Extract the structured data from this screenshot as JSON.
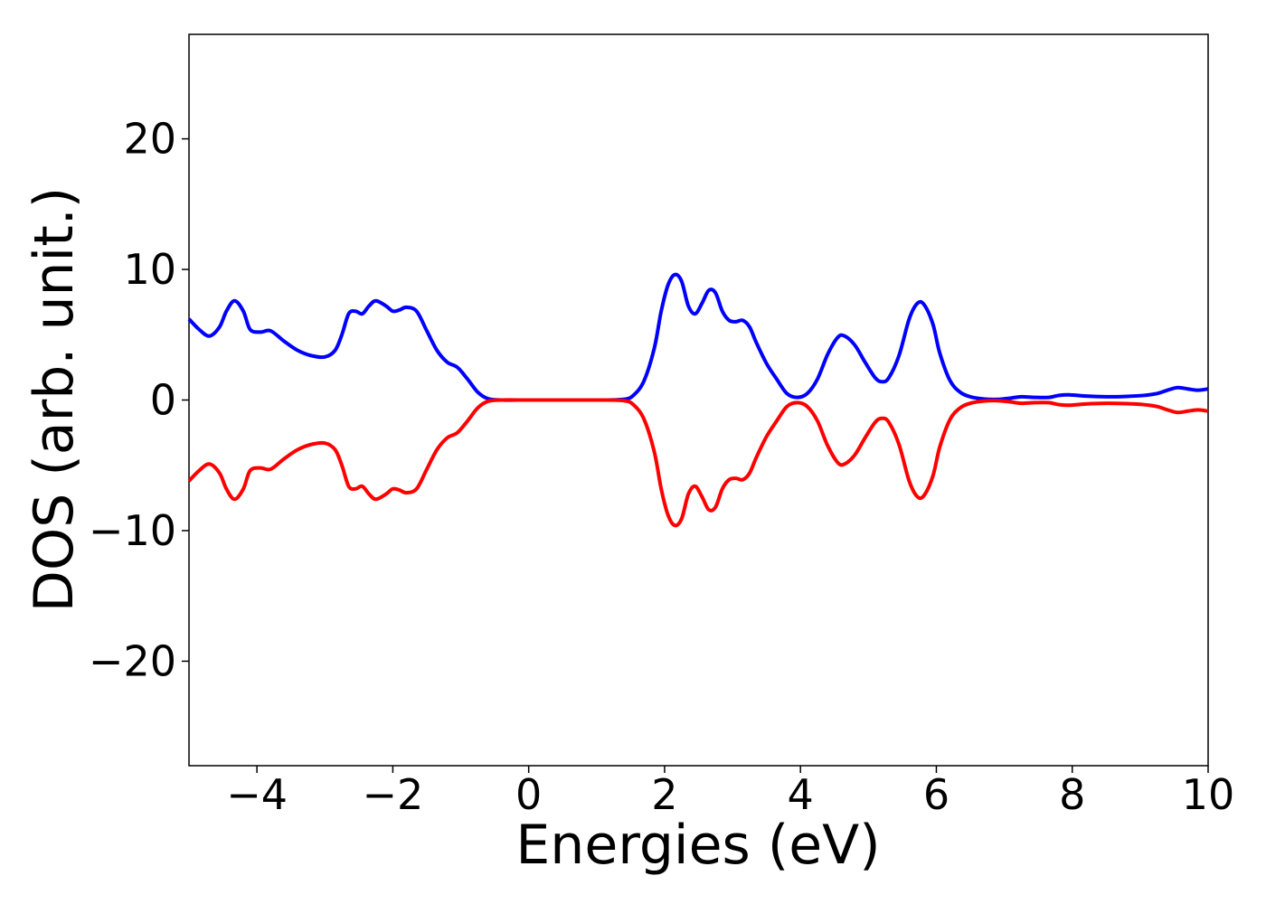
{
  "chart_data": {
    "type": "line",
    "title": "",
    "xlabel": "Energies (eV)",
    "ylabel": "DOS (arb. unit.)",
    "xlim": [
      -5,
      10
    ],
    "ylim": [
      -28,
      28
    ],
    "xticks": [
      -4,
      -2,
      0,
      2,
      4,
      6,
      8,
      10
    ],
    "xtick_labels": [
      "−4",
      "−2",
      "0",
      "2",
      "4",
      "6",
      "8",
      "10"
    ],
    "yticks": [
      -20,
      -10,
      0,
      10,
      20
    ],
    "ytick_labels": [
      "−20",
      "−10",
      "0",
      "10",
      "20"
    ],
    "grid": false,
    "legend": "none",
    "series": [
      {
        "color": "#0000ff",
        "points": [
          [
            -5.0,
            6.2
          ],
          [
            -4.85,
            5.4
          ],
          [
            -4.7,
            4.9
          ],
          [
            -4.55,
            5.6
          ],
          [
            -4.45,
            6.8
          ],
          [
            -4.33,
            7.6
          ],
          [
            -4.2,
            6.8
          ],
          [
            -4.1,
            5.4
          ],
          [
            -3.95,
            5.2
          ],
          [
            -3.8,
            5.3
          ],
          [
            -3.6,
            4.5
          ],
          [
            -3.4,
            3.8
          ],
          [
            -3.2,
            3.4
          ],
          [
            -3.0,
            3.3
          ],
          [
            -2.85,
            3.8
          ],
          [
            -2.75,
            5.0
          ],
          [
            -2.65,
            6.6
          ],
          [
            -2.55,
            6.8
          ],
          [
            -2.45,
            6.6
          ],
          [
            -2.35,
            7.2
          ],
          [
            -2.25,
            7.6
          ],
          [
            -2.1,
            7.2
          ],
          [
            -2.0,
            6.8
          ],
          [
            -1.9,
            6.9
          ],
          [
            -1.8,
            7.1
          ],
          [
            -1.65,
            6.8
          ],
          [
            -1.5,
            5.3
          ],
          [
            -1.35,
            3.8
          ],
          [
            -1.2,
            2.9
          ],
          [
            -1.05,
            2.5
          ],
          [
            -0.9,
            1.6
          ],
          [
            -0.75,
            0.6
          ],
          [
            -0.6,
            0.1
          ],
          [
            -0.4,
            0.0
          ],
          [
            0.0,
            0.0
          ],
          [
            0.5,
            0.0
          ],
          [
            1.0,
            0.0
          ],
          [
            1.4,
            0.05
          ],
          [
            1.55,
            0.4
          ],
          [
            1.7,
            1.5
          ],
          [
            1.85,
            4.0
          ],
          [
            1.95,
            6.8
          ],
          [
            2.05,
            8.8
          ],
          [
            2.15,
            9.6
          ],
          [
            2.25,
            9.1
          ],
          [
            2.35,
            7.2
          ],
          [
            2.45,
            6.6
          ],
          [
            2.55,
            7.4
          ],
          [
            2.65,
            8.4
          ],
          [
            2.75,
            8.2
          ],
          [
            2.85,
            6.8
          ],
          [
            2.95,
            6.1
          ],
          [
            3.05,
            6.0
          ],
          [
            3.15,
            6.1
          ],
          [
            3.25,
            5.6
          ],
          [
            3.35,
            4.4
          ],
          [
            3.5,
            2.8
          ],
          [
            3.65,
            1.6
          ],
          [
            3.8,
            0.5
          ],
          [
            3.95,
            0.2
          ],
          [
            4.1,
            0.5
          ],
          [
            4.25,
            1.6
          ],
          [
            4.4,
            3.5
          ],
          [
            4.55,
            4.8
          ],
          [
            4.65,
            4.9
          ],
          [
            4.8,
            4.2
          ],
          [
            4.95,
            2.9
          ],
          [
            5.1,
            1.7
          ],
          [
            5.2,
            1.4
          ],
          [
            5.3,
            1.7
          ],
          [
            5.45,
            3.4
          ],
          [
            5.6,
            6.2
          ],
          [
            5.72,
            7.4
          ],
          [
            5.82,
            7.3
          ],
          [
            5.95,
            5.8
          ],
          [
            6.05,
            3.6
          ],
          [
            6.2,
            1.5
          ],
          [
            6.35,
            0.6
          ],
          [
            6.5,
            0.25
          ],
          [
            6.7,
            0.08
          ],
          [
            6.9,
            0.05
          ],
          [
            7.1,
            0.15
          ],
          [
            7.25,
            0.25
          ],
          [
            7.45,
            0.2
          ],
          [
            7.65,
            0.2
          ],
          [
            7.8,
            0.35
          ],
          [
            7.95,
            0.4
          ],
          [
            8.2,
            0.3
          ],
          [
            8.5,
            0.25
          ],
          [
            8.8,
            0.28
          ],
          [
            9.05,
            0.35
          ],
          [
            9.25,
            0.5
          ],
          [
            9.4,
            0.75
          ],
          [
            9.55,
            0.95
          ],
          [
            9.7,
            0.85
          ],
          [
            9.85,
            0.75
          ],
          [
            10.0,
            0.85
          ]
        ]
      },
      {
        "color": "#ff0000",
        "points": [
          [
            -5.0,
            -6.2
          ],
          [
            -4.85,
            -5.4
          ],
          [
            -4.7,
            -4.9
          ],
          [
            -4.55,
            -5.6
          ],
          [
            -4.45,
            -6.8
          ],
          [
            -4.33,
            -7.6
          ],
          [
            -4.2,
            -6.8
          ],
          [
            -4.1,
            -5.4
          ],
          [
            -3.95,
            -5.2
          ],
          [
            -3.8,
            -5.3
          ],
          [
            -3.6,
            -4.5
          ],
          [
            -3.4,
            -3.8
          ],
          [
            -3.2,
            -3.4
          ],
          [
            -3.0,
            -3.3
          ],
          [
            -2.85,
            -3.8
          ],
          [
            -2.75,
            -5.0
          ],
          [
            -2.65,
            -6.6
          ],
          [
            -2.55,
            -6.8
          ],
          [
            -2.45,
            -6.6
          ],
          [
            -2.35,
            -7.2
          ],
          [
            -2.25,
            -7.6
          ],
          [
            -2.1,
            -7.2
          ],
          [
            -2.0,
            -6.8
          ],
          [
            -1.9,
            -6.9
          ],
          [
            -1.8,
            -7.1
          ],
          [
            -1.65,
            -6.8
          ],
          [
            -1.5,
            -5.3
          ],
          [
            -1.35,
            -3.8
          ],
          [
            -1.2,
            -2.9
          ],
          [
            -1.05,
            -2.5
          ],
          [
            -0.9,
            -1.6
          ],
          [
            -0.75,
            -0.6
          ],
          [
            -0.6,
            -0.1
          ],
          [
            -0.4,
            0.0
          ],
          [
            0.0,
            0.0
          ],
          [
            0.5,
            0.0
          ],
          [
            1.0,
            0.0
          ],
          [
            1.4,
            -0.05
          ],
          [
            1.55,
            -0.4
          ],
          [
            1.7,
            -1.5
          ],
          [
            1.85,
            -4.0
          ],
          [
            1.95,
            -6.8
          ],
          [
            2.05,
            -8.8
          ],
          [
            2.15,
            -9.6
          ],
          [
            2.25,
            -9.1
          ],
          [
            2.35,
            -7.2
          ],
          [
            2.45,
            -6.6
          ],
          [
            2.55,
            -7.4
          ],
          [
            2.65,
            -8.4
          ],
          [
            2.75,
            -8.2
          ],
          [
            2.85,
            -6.8
          ],
          [
            2.95,
            -6.1
          ],
          [
            3.05,
            -6.0
          ],
          [
            3.15,
            -6.1
          ],
          [
            3.25,
            -5.6
          ],
          [
            3.35,
            -4.4
          ],
          [
            3.5,
            -2.8
          ],
          [
            3.65,
            -1.6
          ],
          [
            3.8,
            -0.5
          ],
          [
            3.95,
            -0.2
          ],
          [
            4.1,
            -0.5
          ],
          [
            4.25,
            -1.6
          ],
          [
            4.4,
            -3.5
          ],
          [
            4.55,
            -4.8
          ],
          [
            4.65,
            -4.9
          ],
          [
            4.8,
            -4.2
          ],
          [
            4.95,
            -2.9
          ],
          [
            5.1,
            -1.7
          ],
          [
            5.2,
            -1.4
          ],
          [
            5.3,
            -1.7
          ],
          [
            5.45,
            -3.4
          ],
          [
            5.6,
            -6.2
          ],
          [
            5.72,
            -7.4
          ],
          [
            5.82,
            -7.3
          ],
          [
            5.95,
            -5.8
          ],
          [
            6.05,
            -3.6
          ],
          [
            6.2,
            -1.5
          ],
          [
            6.35,
            -0.6
          ],
          [
            6.5,
            -0.25
          ],
          [
            6.7,
            -0.08
          ],
          [
            6.9,
            -0.05
          ],
          [
            7.1,
            -0.15
          ],
          [
            7.25,
            -0.25
          ],
          [
            7.45,
            -0.2
          ],
          [
            7.65,
            -0.2
          ],
          [
            7.8,
            -0.35
          ],
          [
            7.95,
            -0.4
          ],
          [
            8.2,
            -0.3
          ],
          [
            8.5,
            -0.25
          ],
          [
            8.8,
            -0.28
          ],
          [
            9.05,
            -0.35
          ],
          [
            9.25,
            -0.5
          ],
          [
            9.4,
            -0.75
          ],
          [
            9.55,
            -0.95
          ],
          [
            9.7,
            -0.85
          ],
          [
            9.85,
            -0.75
          ],
          [
            10.0,
            -0.85
          ]
        ]
      }
    ]
  }
}
